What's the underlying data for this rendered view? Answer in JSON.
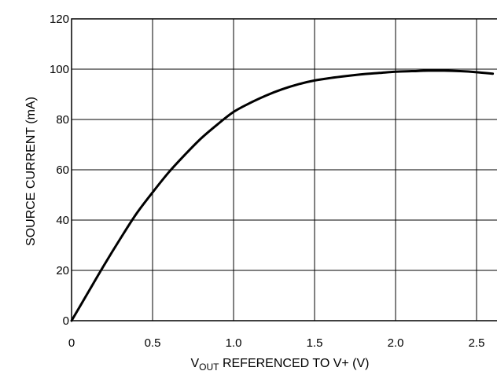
{
  "chart_data": {
    "type": "line",
    "title": "",
    "xlabel": {
      "main": "V",
      "sub": "OUT",
      "rest": " REFERENCED TO V+ (V)"
    },
    "ylabel": "SOURCE CURRENT (mA)",
    "xlim": [
      0,
      2.6
    ],
    "ylim": [
      0,
      120
    ],
    "x_ticks": [
      0,
      0.5,
      1.0,
      1.5,
      2.0,
      2.5
    ],
    "x_tick_labels": [
      "0",
      "0.5",
      "1.0",
      "1.5",
      "2.0",
      "2.5"
    ],
    "y_ticks": [
      0,
      20,
      40,
      60,
      80,
      100,
      120
    ],
    "y_tick_labels": [
      "0",
      "20",
      "40",
      "60",
      "80",
      "100",
      "120"
    ],
    "grid": true,
    "legend": "none",
    "series": [
      {
        "color": "#000000",
        "x": [
          0,
          0.1,
          0.2,
          0.3,
          0.4,
          0.5,
          0.6,
          0.7,
          0.8,
          0.9,
          1.0,
          1.1,
          1.2,
          1.3,
          1.4,
          1.5,
          1.6,
          1.7,
          1.8,
          1.9,
          2.0,
          2.1,
          2.2,
          2.3,
          2.4,
          2.5,
          2.6
        ],
        "y": [
          0,
          11,
          22,
          32.5,
          42.5,
          51,
          59,
          66,
          72.5,
          78,
          83,
          86.5,
          89.5,
          92,
          94,
          95.5,
          96.5,
          97.3,
          98,
          98.5,
          99,
          99.2,
          99.4,
          99.4,
          99.2,
          98.8,
          98.2
        ]
      }
    ]
  }
}
